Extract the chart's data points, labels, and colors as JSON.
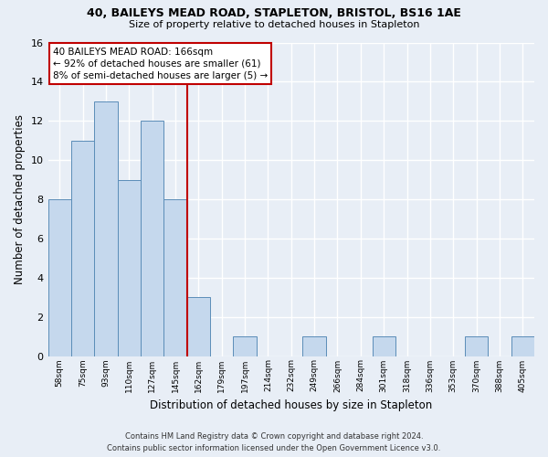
{
  "title1": "40, BAILEYS MEAD ROAD, STAPLETON, BRISTOL, BS16 1AE",
  "title2": "Size of property relative to detached houses in Stapleton",
  "xlabel": "Distribution of detached houses by size in Stapleton",
  "ylabel": "Number of detached properties",
  "bin_labels": [
    "58sqm",
    "75sqm",
    "93sqm",
    "110sqm",
    "127sqm",
    "145sqm",
    "162sqm",
    "179sqm",
    "197sqm",
    "214sqm",
    "232sqm",
    "249sqm",
    "266sqm",
    "284sqm",
    "301sqm",
    "318sqm",
    "336sqm",
    "353sqm",
    "370sqm",
    "388sqm",
    "405sqm"
  ],
  "bar_heights": [
    8,
    11,
    13,
    9,
    12,
    8,
    3,
    0,
    1,
    0,
    0,
    1,
    0,
    0,
    1,
    0,
    0,
    0,
    1,
    0,
    1
  ],
  "bar_color": "#c5d8ed",
  "bar_edge_color": "#5b8db8",
  "reference_line_color": "#c00000",
  "annotation_line1": "40 BAILEYS MEAD ROAD: 166sqm",
  "annotation_line2": "← 92% of detached houses are smaller (61)",
  "annotation_line3": "8% of semi-detached houses are larger (5) →",
  "annotation_box_color": "#ffffff",
  "annotation_box_edge_color": "#c00000",
  "ylim": [
    0,
    16
  ],
  "yticks": [
    0,
    2,
    4,
    6,
    8,
    10,
    12,
    14,
    16
  ],
  "footer1": "Contains HM Land Registry data © Crown copyright and database right 2024.",
  "footer2": "Contains public sector information licensed under the Open Government Licence v3.0.",
  "background_color": "#e8eef6",
  "grid_color": "#ffffff",
  "ref_bin_index": 6
}
